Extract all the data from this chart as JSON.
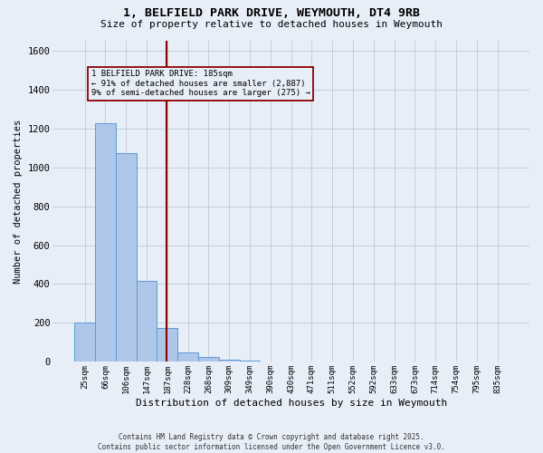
{
  "title_line1": "1, BELFIELD PARK DRIVE, WEYMOUTH, DT4 9RB",
  "title_line2": "Size of property relative to detached houses in Weymouth",
  "xlabel": "Distribution of detached houses by size in Weymouth",
  "ylabel": "Number of detached properties",
  "bar_labels": [
    "25sqm",
    "66sqm",
    "106sqm",
    "147sqm",
    "187sqm",
    "228sqm",
    "268sqm",
    "309sqm",
    "349sqm",
    "390sqm",
    "430sqm",
    "471sqm",
    "511sqm",
    "552sqm",
    "592sqm",
    "633sqm",
    "673sqm",
    "714sqm",
    "754sqm",
    "795sqm",
    "835sqm"
  ],
  "bar_values": [
    200,
    1225,
    1075,
    415,
    175,
    50,
    25,
    10,
    5,
    3,
    3,
    2,
    2,
    2,
    2,
    2,
    2,
    2,
    2,
    2,
    2
  ],
  "bar_color": "#aec6e8",
  "bar_edge_color": "#5b9bd5",
  "property_label": "1 BELFIELD PARK DRIVE: 185sqm",
  "annotation_line2": "← 91% of detached houses are smaller (2,887)",
  "annotation_line3": "9% of semi-detached houses are larger (275) →",
  "vline_color": "#8b0000",
  "annotation_box_color": "#8b0000",
  "ylim": [
    0,
    1650
  ],
  "yticks": [
    0,
    200,
    400,
    600,
    800,
    1000,
    1200,
    1400,
    1600
  ],
  "grid_color": "#c0c8d8",
  "bg_color": "#e8eef8",
  "footer_line1": "Contains HM Land Registry data © Crown copyright and database right 2025.",
  "footer_line2": "Contains public sector information licensed under the Open Government Licence v3.0."
}
